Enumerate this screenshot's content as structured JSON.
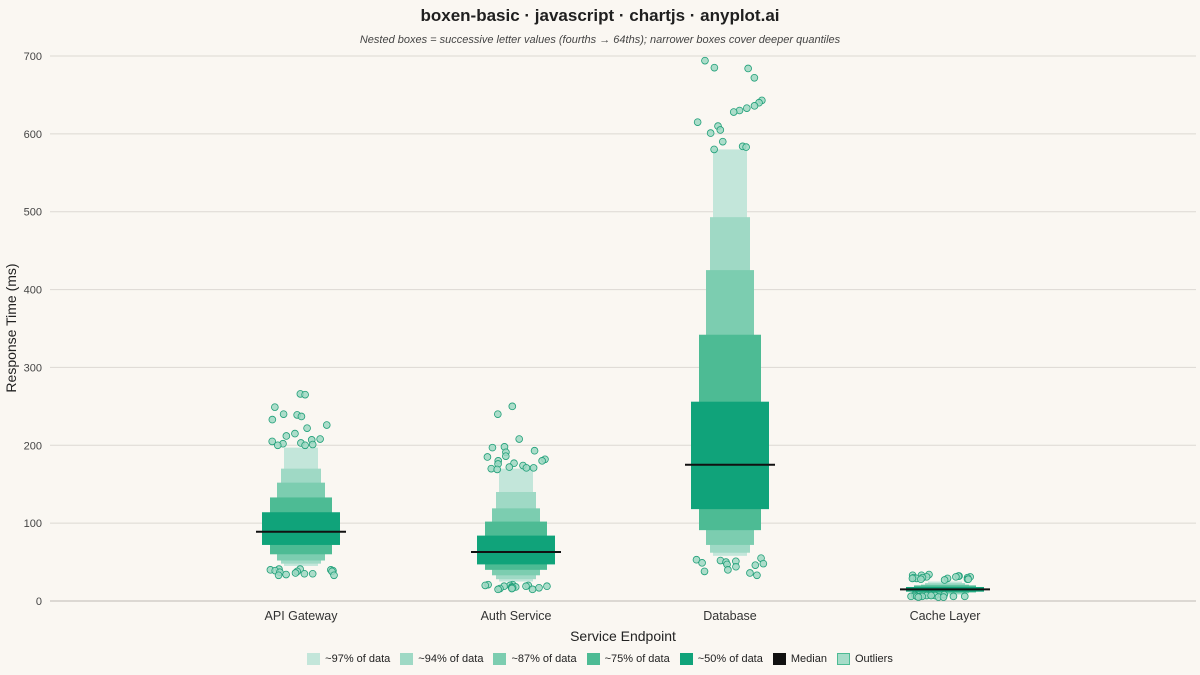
{
  "chart_data": {
    "type": "boxen",
    "title": "boxen-basic · javascript · chartjs · anyplot.ai",
    "subtitle": "Nested boxes = successive letter values (fourths → 64ths); narrower boxes cover deeper quantiles",
    "xlabel": "Service Endpoint",
    "ylabel": "Response Time (ms)",
    "ylim": [
      0,
      700
    ],
    "yticks": [
      "0",
      "100",
      "200",
      "300",
      "400",
      "500",
      "600",
      "700"
    ],
    "grid": true,
    "legend_position": "bottom",
    "categories": [
      "API Gateway",
      "Auth Service",
      "Database",
      "Cache Layer"
    ],
    "legend": [
      {
        "label": "~97% of data",
        "color": "#c3e6da"
      },
      {
        "label": "~94% of data",
        "color": "#9fd9c5"
      },
      {
        "label": "~87% of data",
        "color": "#7ccdb0"
      },
      {
        "label": "~75% of data",
        "color": "#4dbb94"
      },
      {
        "label": "~50% of data",
        "color": "#10a37a"
      },
      {
        "label": "Median",
        "color": "#111111"
      },
      {
        "label": "Outliers",
        "color": "#a6dcc9"
      }
    ],
    "series": [
      {
        "category": "API Gateway",
        "median": 89,
        "levels": [
          {
            "lo": 72,
            "hi": 114
          },
          {
            "lo": 60,
            "hi": 133
          },
          {
            "lo": 52,
            "hi": 152
          },
          {
            "lo": 48,
            "hi": 170
          },
          {
            "lo": 45,
            "hi": 197
          }
        ],
        "outliers_high": [
          266,
          265,
          249,
          240,
          239,
          237,
          233,
          226,
          222,
          215,
          212,
          208,
          207,
          205,
          203,
          202,
          201,
          200,
          200
        ],
        "outliers_low": [
          41,
          41,
          40,
          40,
          39,
          39,
          38,
          38,
          37,
          36,
          35,
          35,
          34,
          33,
          33
        ]
      },
      {
        "category": "Auth Service",
        "median": 63,
        "levels": [
          {
            "lo": 47,
            "hi": 84
          },
          {
            "lo": 40,
            "hi": 102
          },
          {
            "lo": 33,
            "hi": 119
          },
          {
            "lo": 28,
            "hi": 140
          },
          {
            "lo": 25,
            "hi": 170
          }
        ],
        "outliers_high": [
          250,
          240,
          208,
          198,
          197,
          193,
          191,
          186,
          185,
          182,
          180,
          180,
          177,
          176,
          174,
          172,
          171,
          171,
          170,
          169
        ],
        "outliers_low": [
          21,
          21,
          20,
          20,
          20,
          19,
          19,
          19,
          18,
          18,
          17,
          17,
          17,
          16,
          16,
          15,
          15
        ]
      },
      {
        "category": "Database",
        "median": 175,
        "levels": [
          {
            "lo": 118,
            "hi": 256
          },
          {
            "lo": 91,
            "hi": 342
          },
          {
            "lo": 72,
            "hi": 425
          },
          {
            "lo": 62,
            "hi": 493
          },
          {
            "lo": 58,
            "hi": 580
          }
        ],
        "outliers_high": [
          694,
          685,
          684,
          672,
          643,
          640,
          636,
          633,
          630,
          628,
          615,
          610,
          605,
          601,
          590,
          584,
          583,
          580
        ],
        "outliers_low": [
          55,
          53,
          52,
          51,
          50,
          49,
          48,
          47,
          46,
          44,
          40,
          38,
          36,
          33
        ]
      },
      {
        "category": "Cache Layer",
        "median": 15,
        "levels": [
          {
            "lo": 12,
            "hi": 18
          },
          {
            "lo": 11,
            "hi": 20
          },
          {
            "lo": 10,
            "hi": 21
          },
          {
            "lo": 9,
            "hi": 23
          },
          {
            "lo": 8,
            "hi": 25
          }
        ],
        "outliers_high": [
          34,
          33,
          33,
          32,
          32,
          31,
          31,
          31,
          30,
          30,
          30,
          29,
          29,
          29,
          28,
          28,
          28,
          27
        ],
        "outliers_low": [
          8,
          8,
          8,
          7,
          7,
          7,
          7,
          6,
          6,
          6,
          6,
          6,
          6,
          5,
          5,
          5
        ]
      }
    ]
  }
}
